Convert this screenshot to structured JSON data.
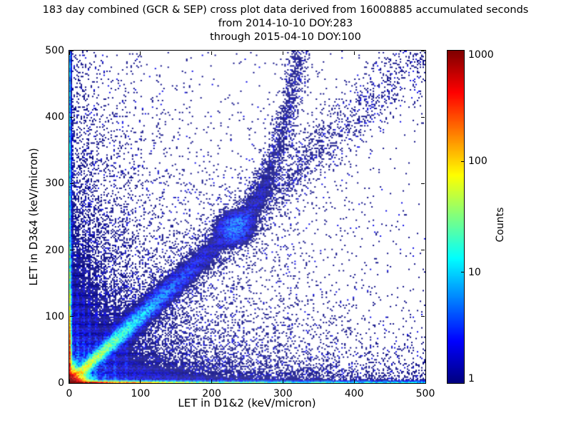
{
  "figure": {
    "background": "#ffffff",
    "title_lines": [
      "183 day combined (GCR & SEP) cross plot data derived from 16008885 accumulated seconds",
      "from 2014-10-10 DOY:283",
      "through 2015-04-10 DOY:100"
    ]
  },
  "chart_data": {
    "type": "heatmap",
    "subtype": "2d-histogram density cross plot, log-scaled counts, jet colormap",
    "title": "183 day combined (GCR & SEP) cross plot data derived from 16008885 accumulated seconds",
    "subtitle": [
      "from 2014-10-10 DOY:283",
      "through 2015-04-10 DOY:100"
    ],
    "xlabel": "LET in D1&2 (keV/micron)",
    "ylabel": "LET in D3&4 (keV/micron)",
    "xlim": [
      0,
      500
    ],
    "ylim": [
      0,
      500
    ],
    "x_ticks": [
      0,
      100,
      200,
      300,
      400,
      500
    ],
    "y_ticks": [
      0,
      100,
      200,
      300,
      400,
      500
    ],
    "grid": false,
    "colorbar": {
      "label": "Counts",
      "scale": "log",
      "min": 1,
      "max": 1000,
      "ticks": [
        1000,
        100,
        10,
        1
      ],
      "colormap": "jet",
      "position": "right"
    },
    "single_count_color": "#000080",
    "max_count_color": "#800000",
    "features": [
      "saturated hot spot (counts ~1000) at the origin (0,0)",
      "high-count strip along the x-axis at y~0, fading red->yellow->cyan->blue out to x=500",
      "high-count strip along the y-axis at x~0, fading red->blue, persisting to y=500",
      "main coincidence band along y=x from the origin to ~(310,310); cyan/yellow core near origin",
      "dense single-count cluster centered near (233,233) on the diagonal",
      "curved sparse branch rising from ~(237,232) to ~(330,500)",
      "faint vertical streaks at low LET in D1&2 (x ~ 12-80) near the bottom",
      "dense navy single-count cloud filling the region near the origin, thinning with x+y",
      "sparse isolated navy points scattered across the full plane"
    ],
    "density_model": {
      "origin_core": {
        "amp": 1200,
        "scale": 7,
        "pow": 1.1
      },
      "bottom_strip": [
        {
          "amp": 450,
          "yscale": 1.4,
          "ypow": 1.5,
          "xdecay": 40
        },
        {
          "amp": 12,
          "yscale": 1.8,
          "ypow": 1.5,
          "xdecay": 200
        },
        {
          "amp": 2.5,
          "yscale": 2.0,
          "ypow": 1.5,
          "xdecay": 100000
        }
      ],
      "left_strip": [
        {
          "amp": 280,
          "xscale": 1.4,
          "xpow": 1.5,
          "ydecay": 40
        },
        {
          "amp": 10,
          "xscale": 1.8,
          "xpow": 1.5,
          "ydecay": 200
        },
        {
          "amp": 1.2,
          "xscale": 2.0,
          "xpow": 1.5,
          "ydecay": 100000
        }
      ],
      "diag_band": {
        "amp": 25,
        "udecay": 40,
        "sig0": 4,
        "sig_growth": 22
      },
      "diag_tail": {
        "amp": 0.25,
        "udecay": 300,
        "sig_extra": 6
      },
      "diag_halo": {
        "amp": 0.18,
        "udecay": 110,
        "sig_mult": 3
      },
      "cluster": {
        "x": 233,
        "y": 233,
        "amp": 0.9,
        "sigma": 14
      },
      "upper_branch": {
        "y_start": 238,
        "x0": 237,
        "log_amp": 60,
        "log_scale": 80,
        "amp": 0.22,
        "sigma": 13,
        "ydecay": 600
      },
      "streaks": {
        "x": [
          12,
          20,
          28,
          38,
          50,
          64,
          80
        ],
        "amp": [
          1.2,
          1.0,
          0.9,
          0.7,
          0.6,
          0.5,
          0.4
        ],
        "width": 1.6,
        "ydecay": 75
      },
      "near_cloud": [
        {
          "amp": 0.35,
          "decay": 135
        },
        {
          "amp": 0.05,
          "decay": 180
        }
      ],
      "bottom_cloud": {
        "amp": 0.35,
        "ydecay": 25,
        "xdecay": 400
      },
      "left_cloud": {
        "amp": 0.25,
        "xdecay": 35,
        "ydecay": 250
      },
      "uniform": 0.0015,
      "seed": 20150410,
      "bin_units": 2
    }
  }
}
